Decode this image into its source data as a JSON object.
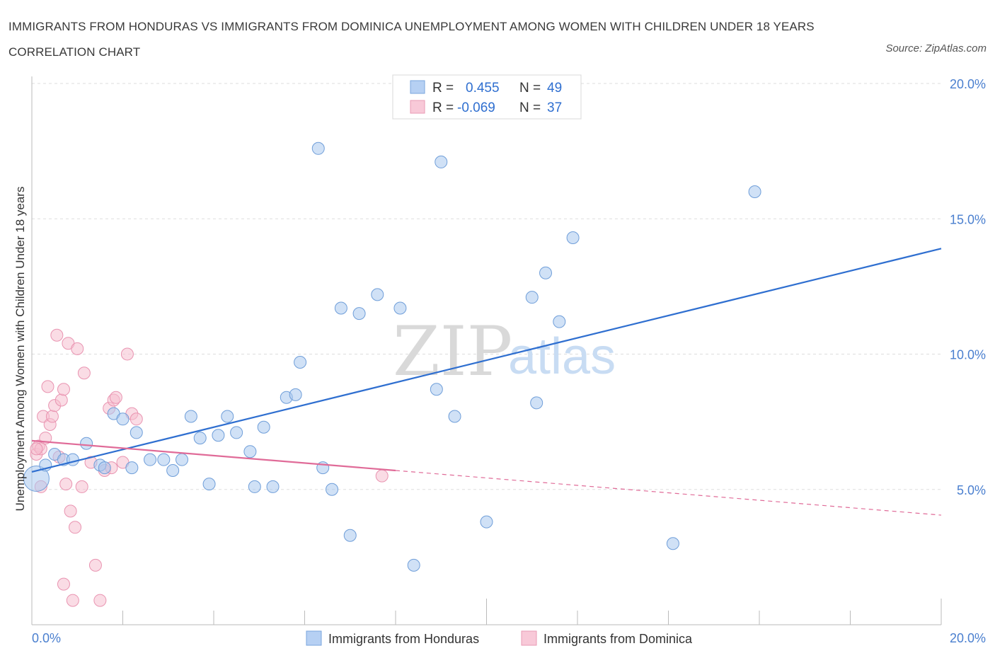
{
  "title": "IMMIGRANTS FROM HONDURAS VS IMMIGRANTS FROM DOMINICA UNEMPLOYMENT AMONG WOMEN WITH CHILDREN UNDER 18 YEARS CORRELATION CHART",
  "source": "Source: ZipAtlas.com",
  "watermark": {
    "zip": "ZIP",
    "atlas": "atlas"
  },
  "legend": {
    "r_label": "R =",
    "n_label": "N =",
    "rows": [
      {
        "r": "0.455",
        "n": "49"
      },
      {
        "r": "-0.069",
        "n": "37"
      }
    ]
  },
  "colors": {
    "honduras_fill": "#a9c8ef",
    "honduras_stroke": "#6f9ed9",
    "honduras_line": "#2f6fd0",
    "dominica_fill": "#f6bfd0",
    "dominica_stroke": "#e994b1",
    "dominica_line": "#e06b98"
  },
  "chart_data": {
    "type": "scatter",
    "xlabel": "",
    "ylabel": "Unemployment Among Women with Children Under 18 years",
    "xlim": [
      0,
      20
    ],
    "ylim": [
      0,
      20
    ],
    "x_tick_labels": [
      "0.0%",
      "20.0%"
    ],
    "y_ticks": [
      5,
      10,
      15,
      20
    ],
    "y_tick_labels": [
      "5.0%",
      "10.0%",
      "15.0%",
      "20.0%"
    ],
    "grid": true,
    "legend_position": "top-center",
    "series": [
      {
        "name": "Immigrants from Honduras",
        "points": [
          [
            0.1,
            5.4
          ],
          [
            0.3,
            5.9
          ],
          [
            0.5,
            6.3
          ],
          [
            0.7,
            6.1
          ],
          [
            1.2,
            6.7
          ],
          [
            1.5,
            5.9
          ],
          [
            1.6,
            5.8
          ],
          [
            1.8,
            7.8
          ],
          [
            2.0,
            7.6
          ],
          [
            2.2,
            5.8
          ],
          [
            2.3,
            7.1
          ],
          [
            2.6,
            6.1
          ],
          [
            2.9,
            6.1
          ],
          [
            3.1,
            5.7
          ],
          [
            3.3,
            6.1
          ],
          [
            3.5,
            7.7
          ],
          [
            3.7,
            6.9
          ],
          [
            3.9,
            5.2
          ],
          [
            4.1,
            7.0
          ],
          [
            4.3,
            7.7
          ],
          [
            4.5,
            7.1
          ],
          [
            4.8,
            6.4
          ],
          [
            4.9,
            5.1
          ],
          [
            5.1,
            7.3
          ],
          [
            5.3,
            5.1
          ],
          [
            5.6,
            8.4
          ],
          [
            5.8,
            8.5
          ],
          [
            5.9,
            9.7
          ],
          [
            6.3,
            17.6
          ],
          [
            6.4,
            5.8
          ],
          [
            6.6,
            5.0
          ],
          [
            6.8,
            11.7
          ],
          [
            7.0,
            3.3
          ],
          [
            7.2,
            11.5
          ],
          [
            7.6,
            12.2
          ],
          [
            8.1,
            11.7
          ],
          [
            8.4,
            2.2
          ],
          [
            8.9,
            8.7
          ],
          [
            9.0,
            17.1
          ],
          [
            9.3,
            7.7
          ],
          [
            10.0,
            3.8
          ],
          [
            11.0,
            12.1
          ],
          [
            11.1,
            8.2
          ],
          [
            11.3,
            13.0
          ],
          [
            11.6,
            11.2
          ],
          [
            11.9,
            14.3
          ],
          [
            14.1,
            3.0
          ],
          [
            15.9,
            16.0
          ],
          [
            0.9,
            6.1
          ]
        ],
        "trend": {
          "x": [
            0,
            20
          ],
          "y": [
            5.65,
            13.9
          ]
        }
      },
      {
        "name": "Immigrants from Dominica",
        "points": [
          [
            0.1,
            6.3
          ],
          [
            0.15,
            6.6
          ],
          [
            0.2,
            6.5
          ],
          [
            0.25,
            7.7
          ],
          [
            0.3,
            6.9
          ],
          [
            0.35,
            8.8
          ],
          [
            0.4,
            7.4
          ],
          [
            0.45,
            7.7
          ],
          [
            0.5,
            8.1
          ],
          [
            0.55,
            10.7
          ],
          [
            0.6,
            6.2
          ],
          [
            0.65,
            8.3
          ],
          [
            0.7,
            8.7
          ],
          [
            0.75,
            5.2
          ],
          [
            0.8,
            10.4
          ],
          [
            0.85,
            4.2
          ],
          [
            0.9,
            0.9
          ],
          [
            0.95,
            3.6
          ],
          [
            1.0,
            10.2
          ],
          [
            1.1,
            5.1
          ],
          [
            1.15,
            9.3
          ],
          [
            1.3,
            6.0
          ],
          [
            1.4,
            2.2
          ],
          [
            1.5,
            0.9
          ],
          [
            1.6,
            5.7
          ],
          [
            1.7,
            8.0
          ],
          [
            1.8,
            8.3
          ],
          [
            1.85,
            8.4
          ],
          [
            2.0,
            6.0
          ],
          [
            2.1,
            10.0
          ],
          [
            2.2,
            7.8
          ],
          [
            2.3,
            7.6
          ],
          [
            0.2,
            5.1
          ],
          [
            0.7,
            1.5
          ],
          [
            1.75,
            5.8
          ],
          [
            7.7,
            5.5
          ],
          [
            0.1,
            6.5
          ]
        ],
        "trend": {
          "x": [
            0,
            8
          ],
          "y": [
            6.8,
            5.7
          ]
        },
        "trend_extension": {
          "x": [
            8,
            20
          ],
          "y": [
            5.7,
            4.05
          ]
        }
      }
    ]
  },
  "bottom_legend": [
    {
      "label": "Immigrants from Honduras"
    },
    {
      "label": "Immigrants from Dominica"
    }
  ]
}
